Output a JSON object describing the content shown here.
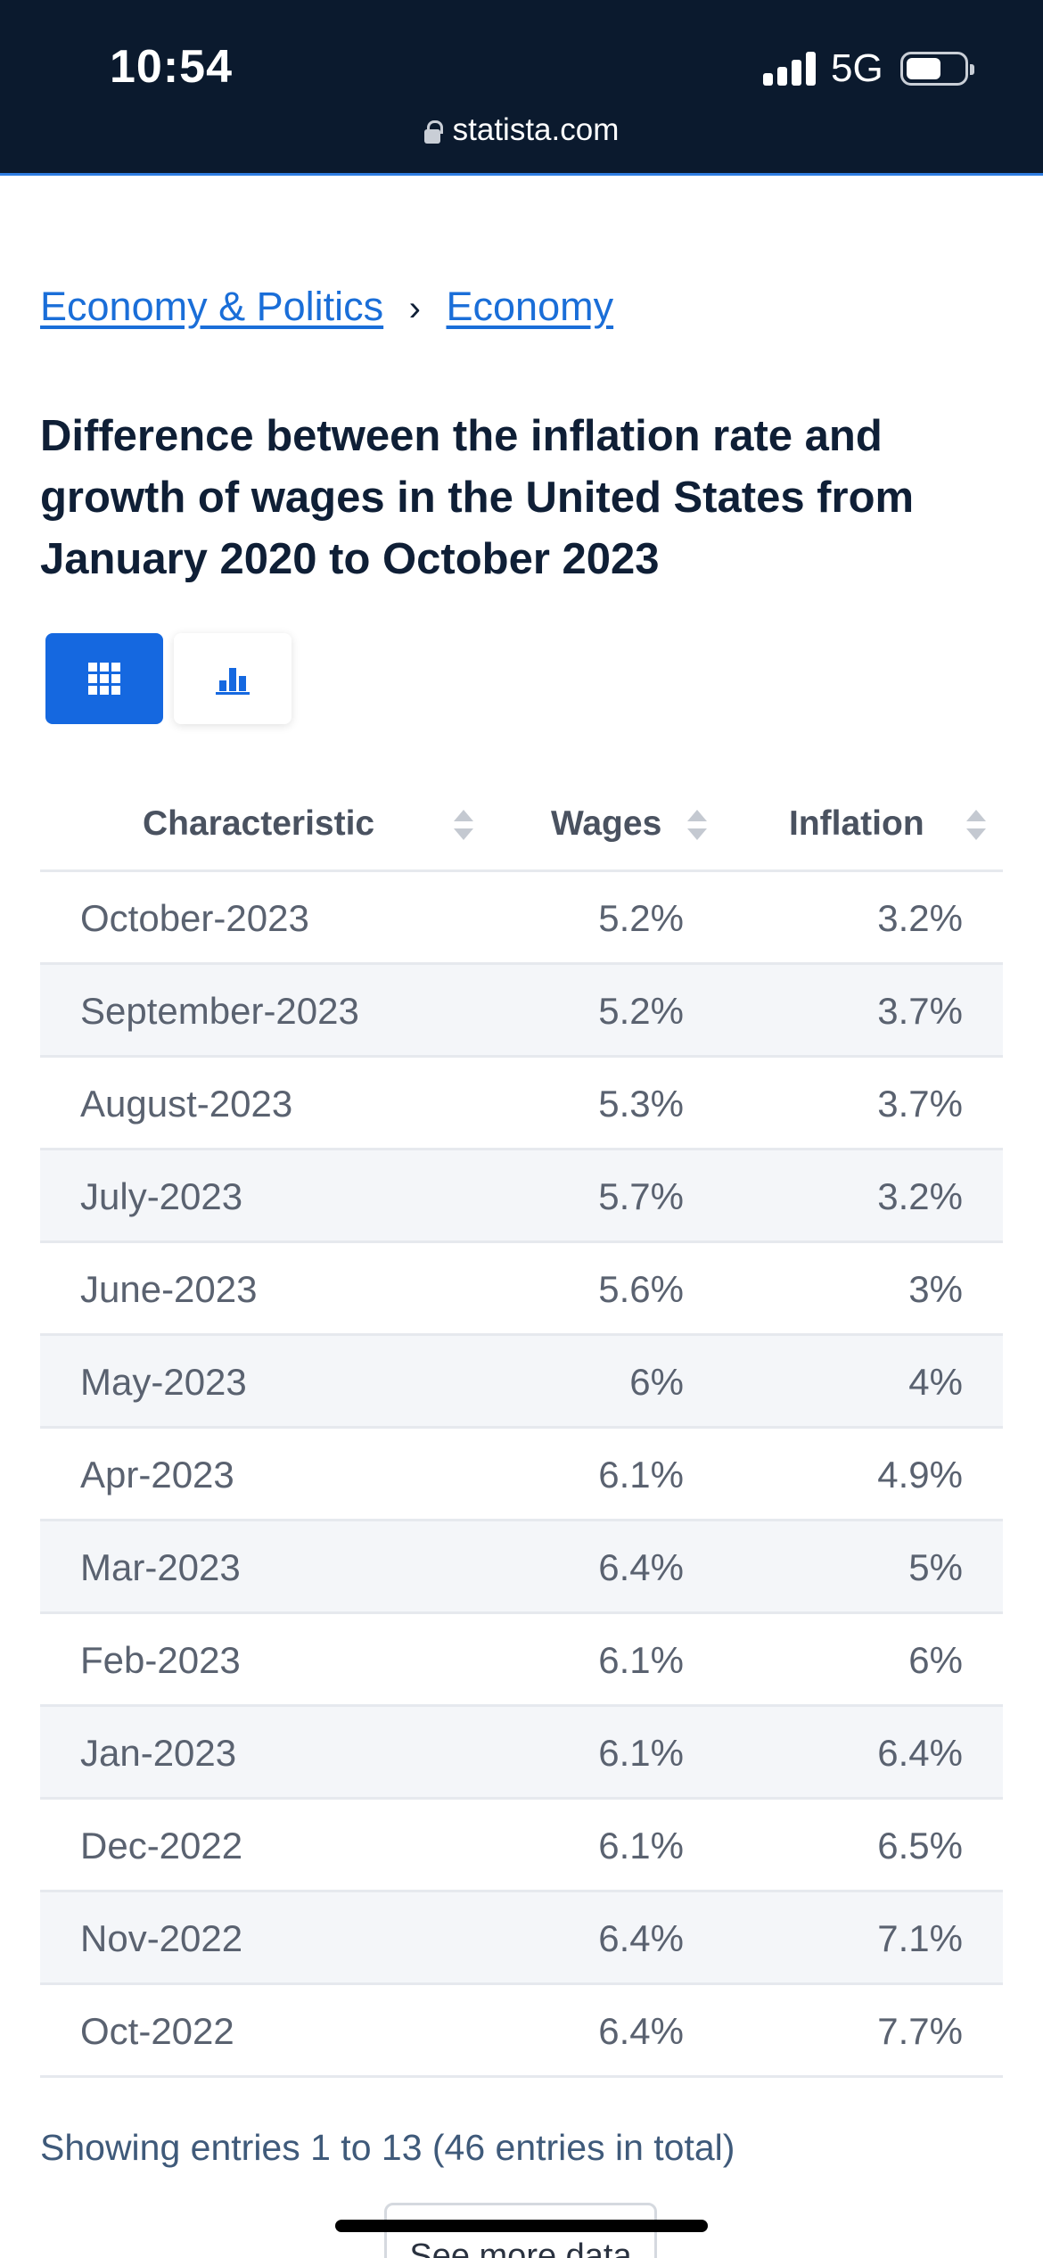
{
  "status_bar": {
    "time": "10:54",
    "network": "5G"
  },
  "url_bar": {
    "domain": "statista.com"
  },
  "breadcrumb": {
    "items": [
      "Economy & Politics",
      "Economy"
    ],
    "separator": "›"
  },
  "page": {
    "title": "Difference between the inflation rate and growth of wages in the United States from January 2020 to October 2023"
  },
  "view_toggle": {
    "active": "table",
    "options": [
      "table-icon",
      "bar-chart-icon"
    ]
  },
  "table": {
    "headers": [
      "Characteristic",
      "Wages",
      "Inflation"
    ],
    "rows": [
      [
        "October-2023",
        "5.2%",
        "3.2%"
      ],
      [
        "September-2023",
        "5.2%",
        "3.7%"
      ],
      [
        "August-2023",
        "5.3%",
        "3.7%"
      ],
      [
        "July-2023",
        "5.7%",
        "3.2%"
      ],
      [
        "June-2023",
        "5.6%",
        "3%"
      ],
      [
        "May-2023",
        "6%",
        "4%"
      ],
      [
        "Apr-2023",
        "6.1%",
        "4.9%"
      ],
      [
        "Mar-2023",
        "6.4%",
        "5%"
      ],
      [
        "Feb-2023",
        "6.1%",
        "6%"
      ],
      [
        "Jan-2023",
        "6.1%",
        "6.4%"
      ],
      [
        "Dec-2022",
        "6.1%",
        "6.5%"
      ],
      [
        "Nov-2022",
        "6.4%",
        "7.1%"
      ],
      [
        "Oct-2022",
        "6.4%",
        "7.7%"
      ]
    ]
  },
  "footer": {
    "entries_text": "Showing entries 1 to 13 (46 entries in total)",
    "more_button": "See more data"
  },
  "colors": {
    "header_bg": "#0b1a2e",
    "accent": "#1568e0",
    "link": "#1a6ed8",
    "row_alt": "#f4f6f9"
  }
}
